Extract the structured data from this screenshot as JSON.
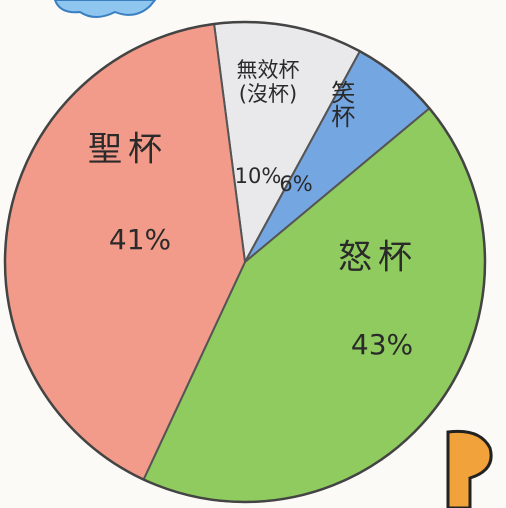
{
  "chart_data": {
    "type": "pie",
    "categories": [
      "無效杯(沒杯)",
      "笑杯",
      "怒杯",
      "聖杯"
    ],
    "values": [
      10,
      6,
      43,
      41
    ],
    "value_labels": [
      "10%",
      "6%",
      "43%",
      "41%"
    ],
    "colors": [
      "#e9e9ec",
      "#74a6e2",
      "#8fcb5e",
      "#f39b8a"
    ]
  }
}
